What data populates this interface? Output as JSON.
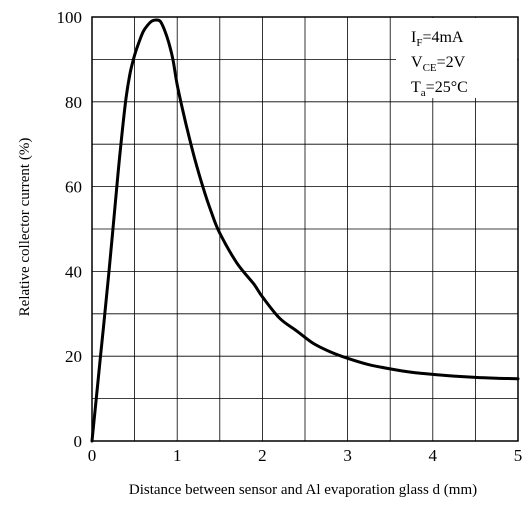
{
  "chart_data": {
    "type": "line",
    "xlabel": "Distance between sensor and Al evaporation glass d (mm)",
    "ylabel": "Relative collector current (%)",
    "xlim": [
      0,
      5
    ],
    "ylim": [
      0,
      100
    ],
    "x_ticks": [
      "0",
      "1",
      "2",
      "3",
      "4",
      "5"
    ],
    "y_ticks": [
      "0",
      "20",
      "40",
      "60",
      "80",
      "100"
    ],
    "grid": "on",
    "series": [
      {
        "x": [
          0,
          0.1,
          0.2,
          0.3,
          0.35,
          0.4,
          0.45,
          0.5,
          0.55,
          0.6,
          0.65,
          0.7,
          0.75,
          0.8,
          0.85,
          0.9,
          0.95,
          1.0,
          1.1,
          1.2,
          1.3,
          1.4,
          1.5,
          1.7,
          1.9,
          2.0,
          2.2,
          2.4,
          2.6,
          2.8,
          3.0,
          3.25,
          3.5,
          3.75,
          4.0,
          4.25,
          4.5,
          4.75,
          5.0
        ],
        "y": [
          0,
          20,
          40,
          62,
          72,
          81,
          87,
          91,
          94,
          96.5,
          98,
          99,
          99.3,
          99,
          97,
          94,
          90,
          84,
          75,
          67,
          60,
          54,
          49,
          42,
          37,
          34,
          29,
          26,
          23,
          21,
          19.5,
          18,
          17,
          16.2,
          15.7,
          15.3,
          15,
          14.8,
          14.7
        ]
      }
    ]
  },
  "conditions": {
    "if_main": "I",
    "if_sub": "F",
    "if_value": "=4mA",
    "vce_main": "V",
    "vce_sub": "CE",
    "vce_value": "=2V",
    "ta_main": "T",
    "ta_sub": "a",
    "ta_value": "=25°C"
  }
}
